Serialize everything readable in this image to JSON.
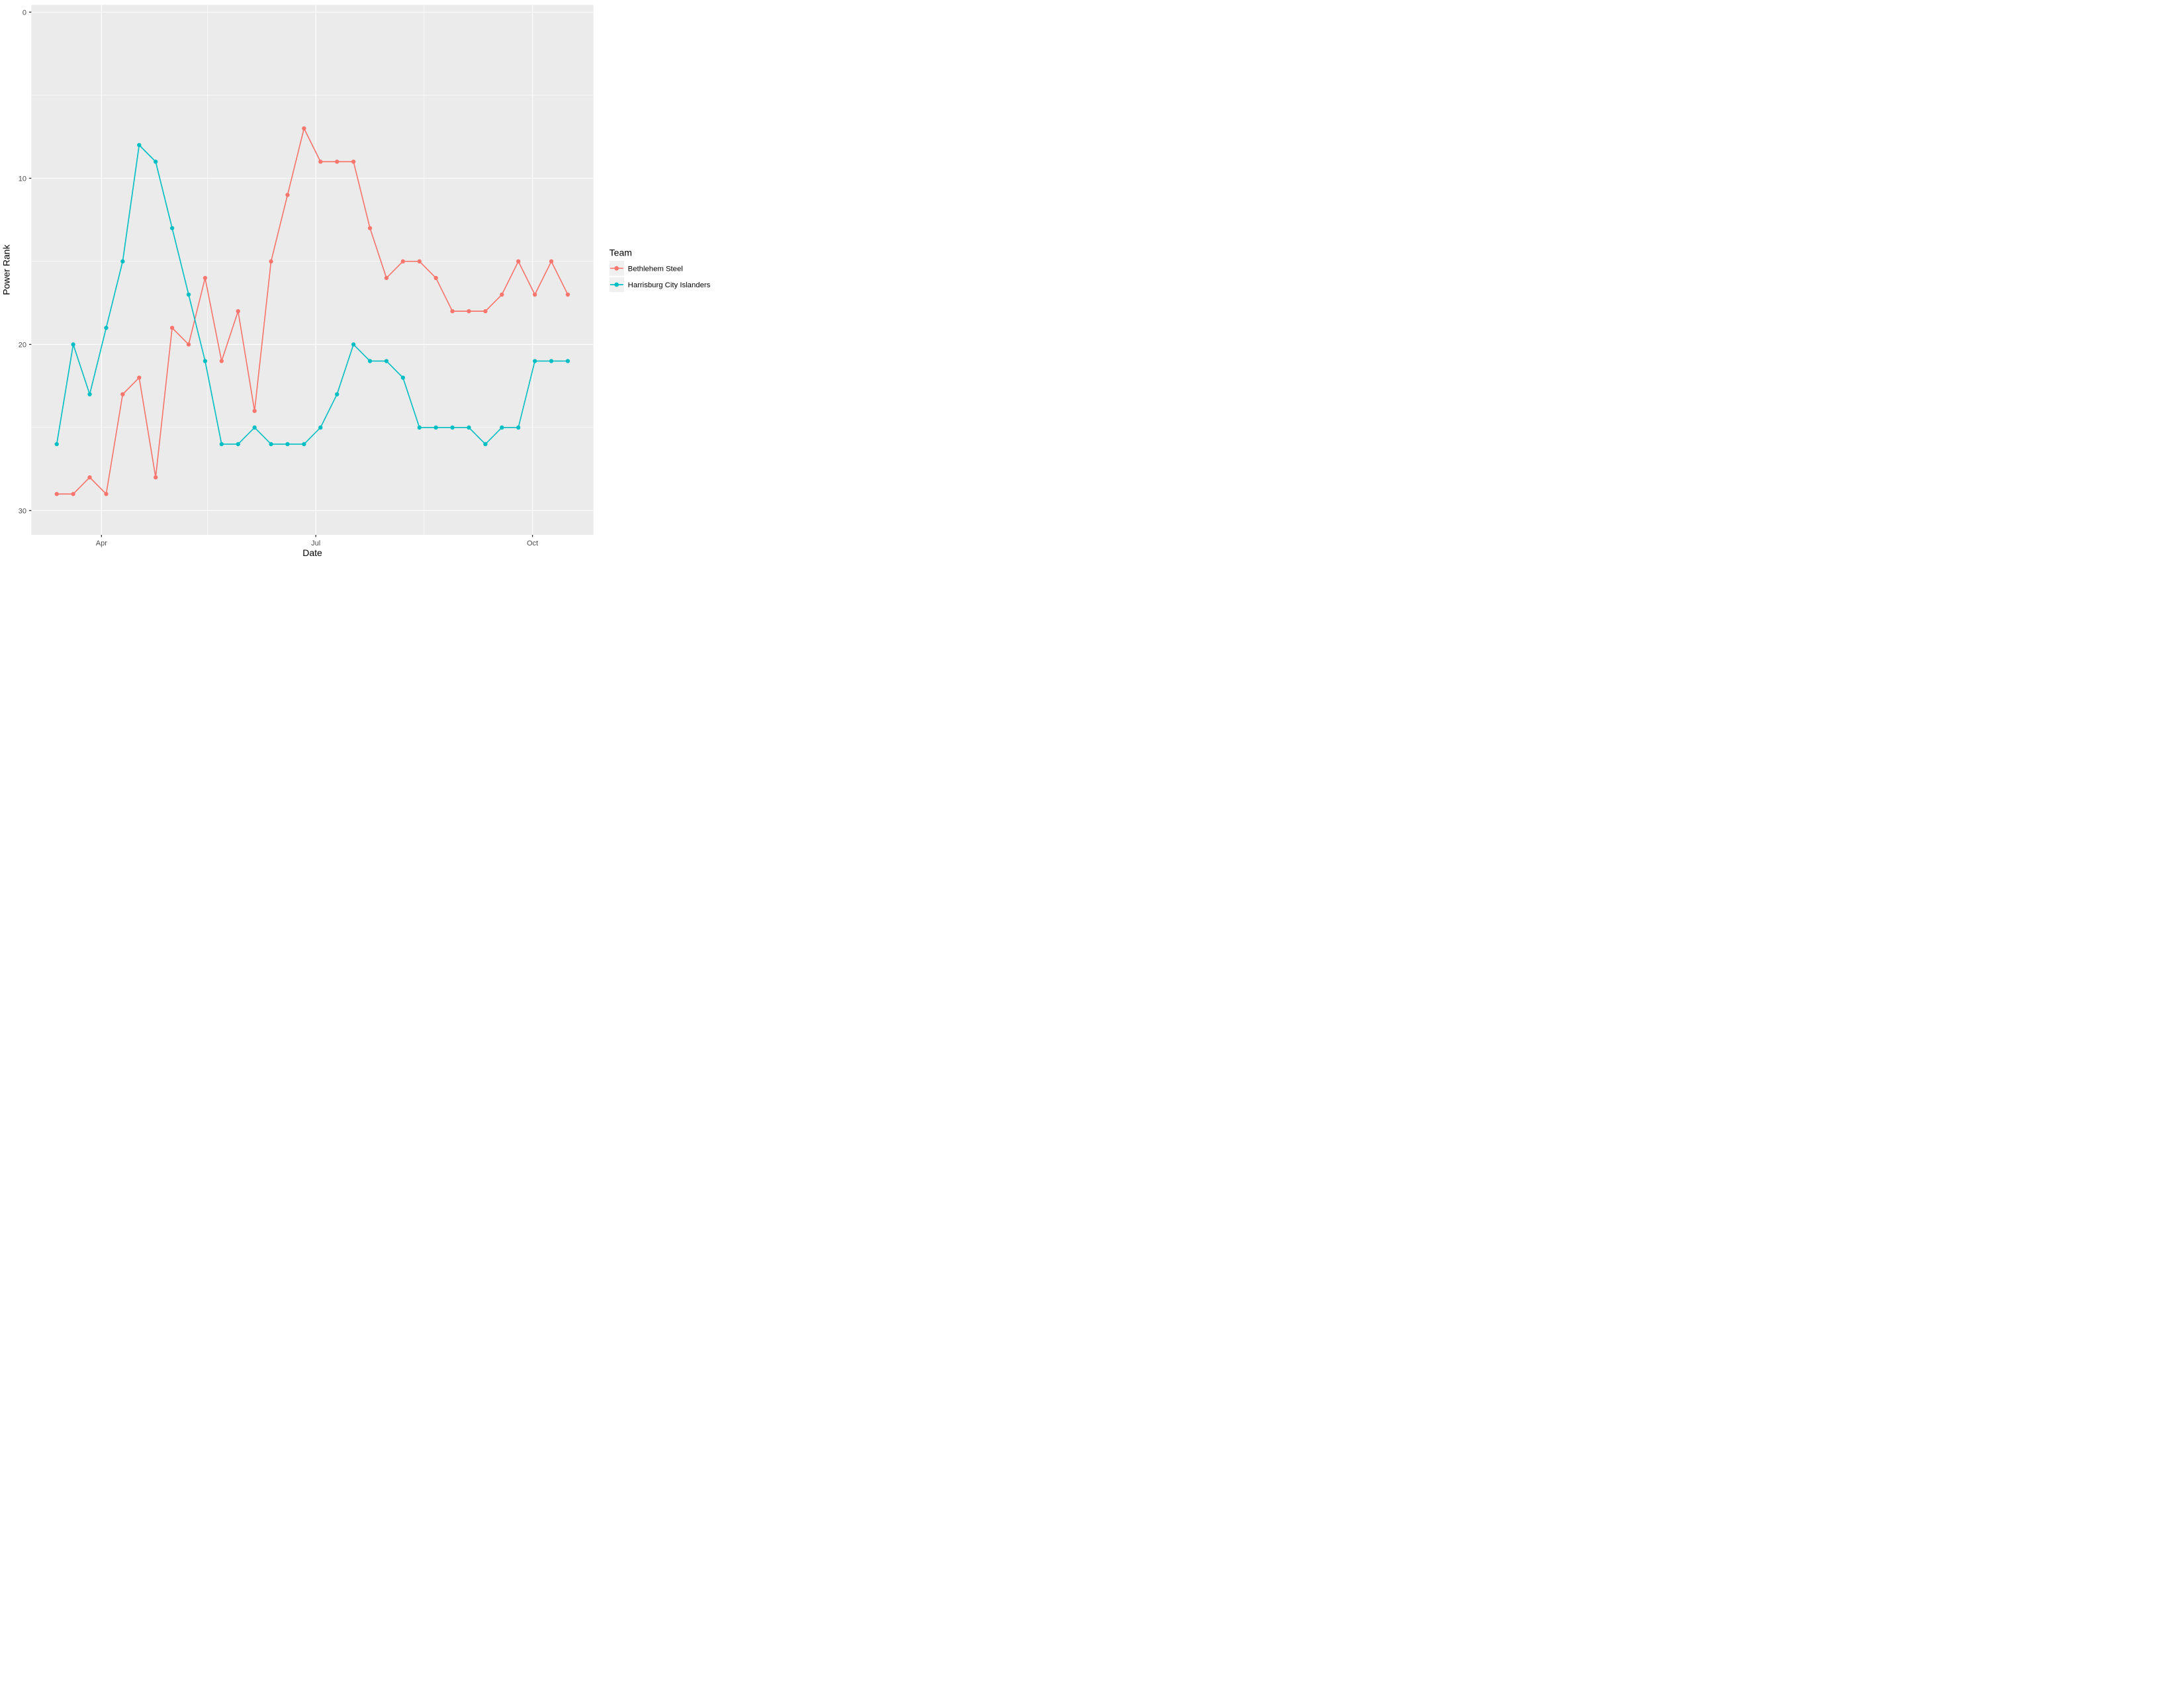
{
  "chart_data": {
    "type": "line",
    "title": "",
    "xlabel": "Date",
    "ylabel": "Power Rank",
    "x": [
      "2016-03-13",
      "2016-03-20",
      "2016-03-27",
      "2016-04-03",
      "2016-04-10",
      "2016-04-17",
      "2016-04-24",
      "2016-05-01",
      "2016-05-08",
      "2016-05-15",
      "2016-05-22",
      "2016-05-29",
      "2016-06-05",
      "2016-06-12",
      "2016-06-19",
      "2016-06-26",
      "2016-07-03",
      "2016-07-10",
      "2016-07-17",
      "2016-07-24",
      "2016-07-31",
      "2016-08-07",
      "2016-08-14",
      "2016-08-21",
      "2016-08-28",
      "2016-09-04",
      "2016-09-11",
      "2016-09-18",
      "2016-09-25",
      "2016-10-02",
      "2016-10-09",
      "2016-10-16"
    ],
    "series": [
      {
        "name": "Bethlehem Steel",
        "color": "#F8766D",
        "values": [
          29,
          29,
          28,
          29,
          23,
          22,
          28,
          19,
          20,
          16,
          21,
          18,
          24,
          15,
          11,
          7,
          9,
          9,
          9,
          13,
          16,
          15,
          15,
          16,
          18,
          18,
          18,
          17,
          15,
          17,
          15,
          17
        ]
      },
      {
        "name": "Harrisburg City Islanders",
        "color": "#00BFC4",
        "values": [
          26,
          20,
          23,
          19,
          15,
          8,
          9,
          13,
          17,
          21,
          26,
          26,
          25,
          26,
          26,
          26,
          25,
          23,
          20,
          21,
          21,
          22,
          25,
          25,
          25,
          25,
          26,
          25,
          25,
          21,
          21,
          21
        ]
      }
    ],
    "y_axis": {
      "reversed": true,
      "ticks": [
        0,
        10,
        20,
        30
      ],
      "minor_ticks": [
        5,
        15,
        25
      ],
      "range_top": 0,
      "range_bottom": 30
    },
    "x_axis": {
      "ticks": [
        {
          "date": "2016-04-01",
          "label": "Apr"
        },
        {
          "date": "2016-07-01",
          "label": "Jul"
        },
        {
          "date": "2016-10-01",
          "label": "Oct"
        }
      ],
      "minor_ticks": [
        "2016-05-16",
        "2016-08-16"
      ]
    },
    "legend": {
      "title": "Team",
      "position": "right"
    },
    "grid": true,
    "colors": {
      "panel_background": "#EBEBEB",
      "gridline": "#FFFFFF",
      "tick_label": "#4D4D4D",
      "tick_mark": "#333333",
      "axis_title": "#000000",
      "legend_key_background": "#F0F0F0"
    }
  }
}
